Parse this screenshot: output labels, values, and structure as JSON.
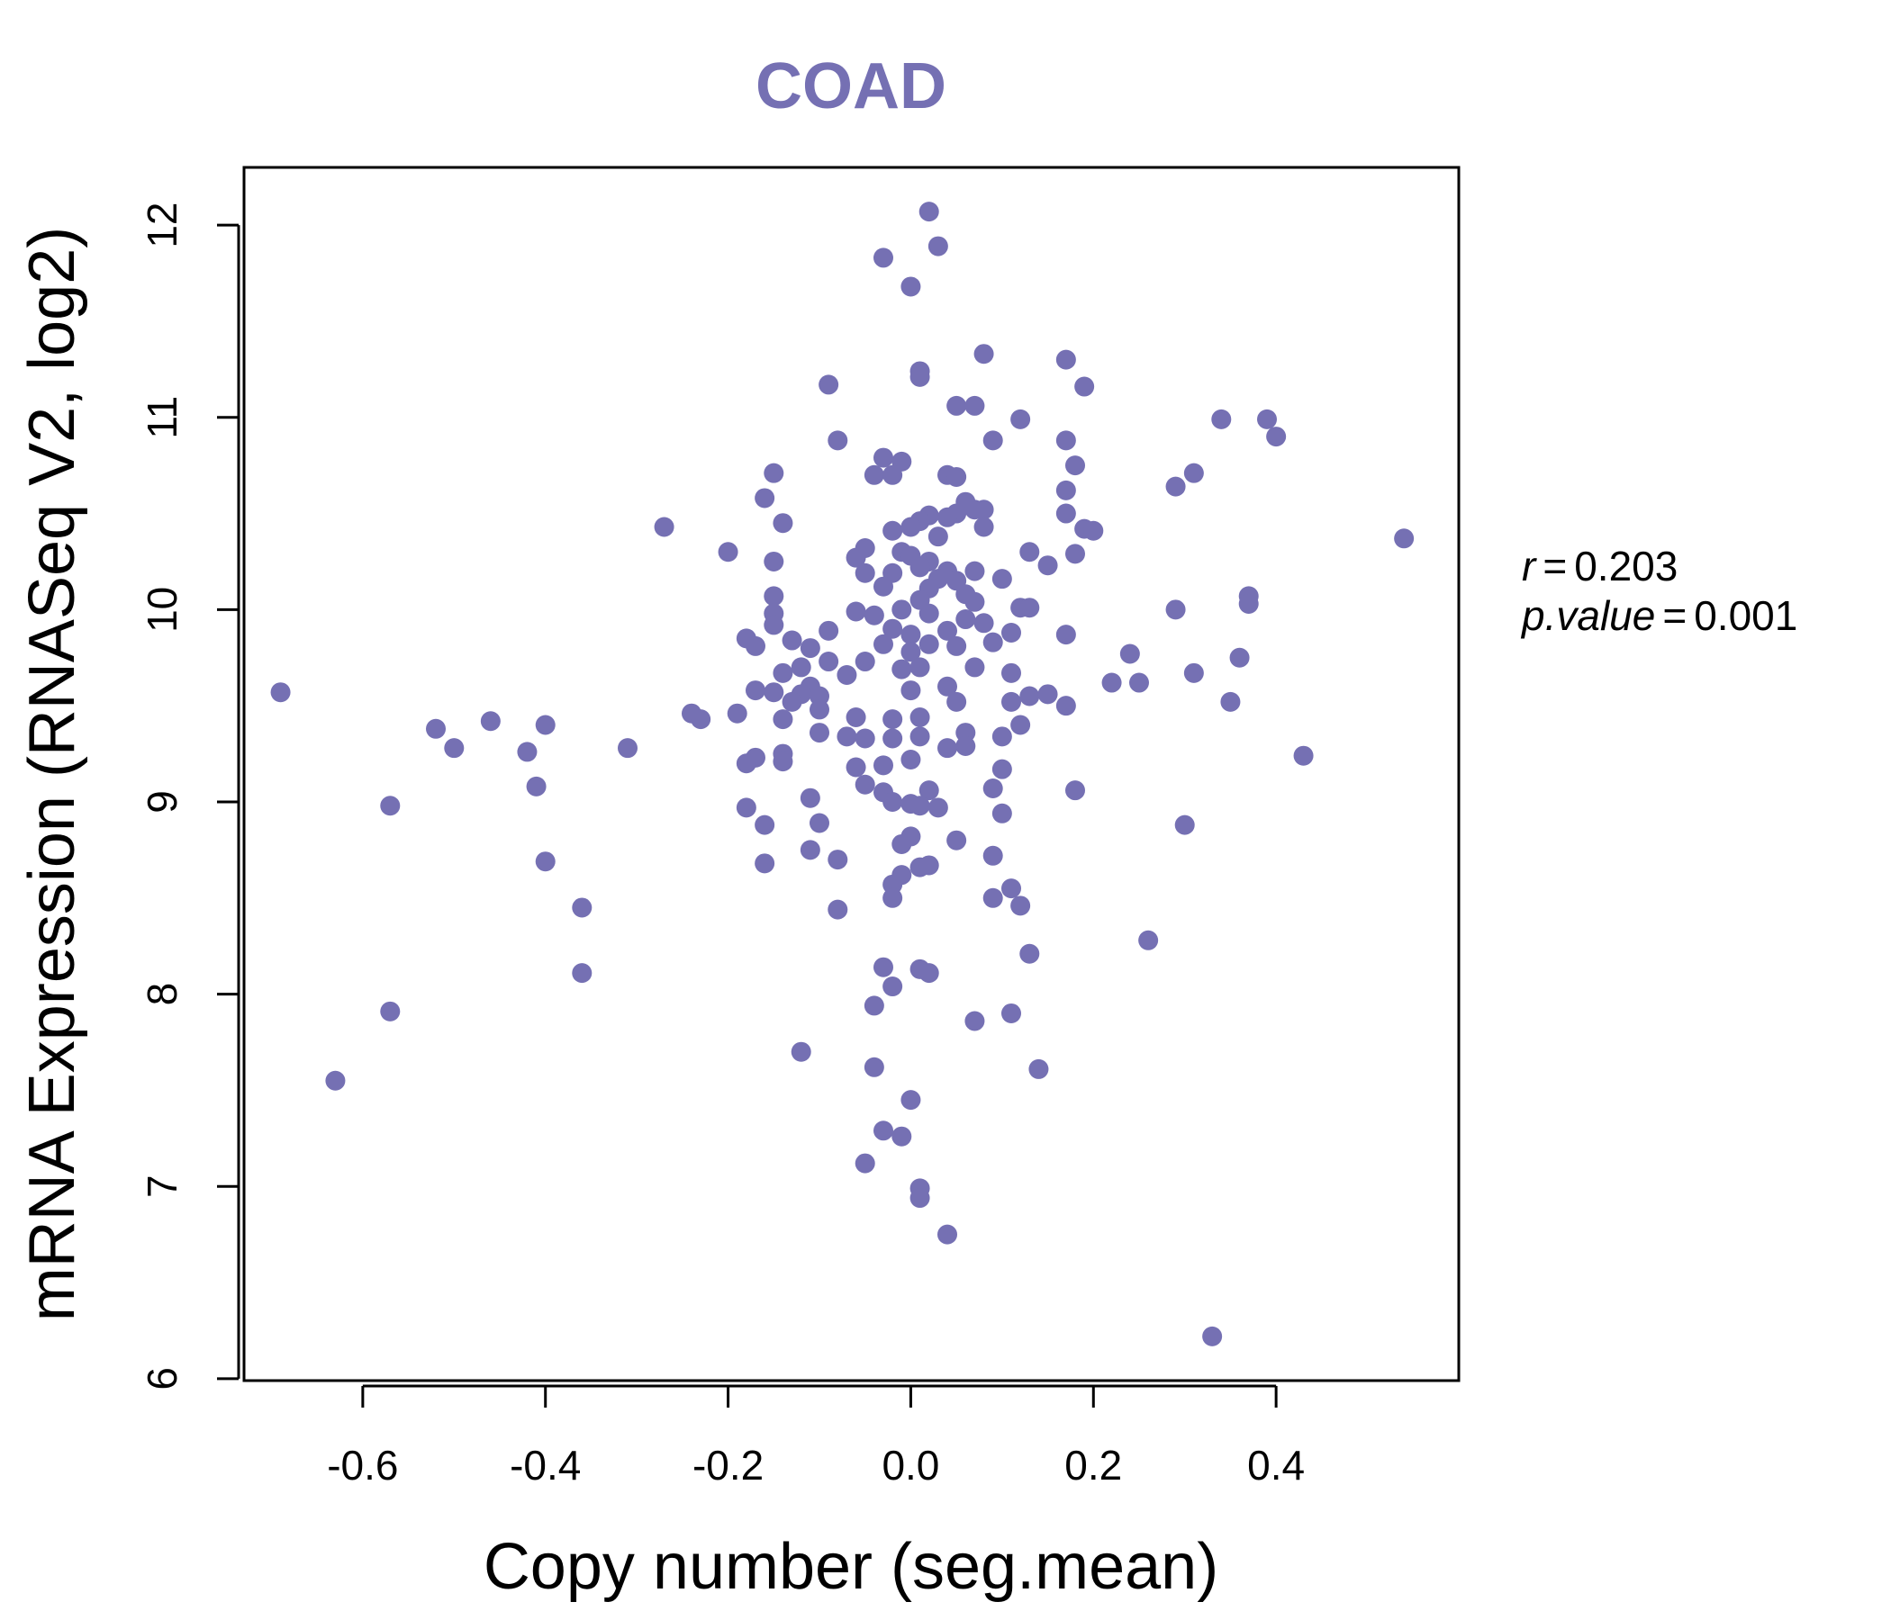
{
  "colors": {
    "point": "#7570B3",
    "title": "#7570B3",
    "axis": "#000000"
  },
  "chart_data": {
    "type": "scatter",
    "title": "COAD",
    "xlabel": "Copy number (seg.mean)",
    "ylabel": "mRNA Expression (RNASeq V2, log2)",
    "xlim": [
      -0.73,
      0.6
    ],
    "ylim": [
      5.99,
      12.3
    ],
    "xticks": [
      -0.6,
      -0.4,
      -0.2,
      0.0,
      0.2,
      0.4
    ],
    "xtick_labels": [
      "-0.6",
      "-0.4",
      "-0.2",
      "0.0",
      "0.2",
      "0.4"
    ],
    "yticks": [
      6,
      7,
      8,
      9,
      10,
      11,
      12
    ],
    "ytick_labels": [
      "6",
      "7",
      "8",
      "9",
      "10",
      "11",
      "12"
    ],
    "stats": {
      "r_label": "r",
      "r_value": "0.203",
      "p_label": "p.value",
      "p_value": "0.001"
    },
    "points": [
      [
        0.02,
        12.07
      ],
      [
        -0.03,
        11.83
      ],
      [
        0.03,
        11.89
      ],
      [
        0.0,
        11.68
      ],
      [
        0.08,
        11.33
      ],
      [
        0.17,
        11.3
      ],
      [
        0.19,
        11.16
      ],
      [
        0.01,
        11.24
      ],
      [
        0.01,
        11.21
      ],
      [
        -0.09,
        11.17
      ],
      [
        0.05,
        11.06
      ],
      [
        0.07,
        11.06
      ],
      [
        0.12,
        10.99
      ],
      [
        0.34,
        10.99
      ],
      [
        0.39,
        10.99
      ],
      [
        0.4,
        10.9
      ],
      [
        0.09,
        10.88
      ],
      [
        0.17,
        10.88
      ],
      [
        -0.08,
        10.88
      ],
      [
        -0.03,
        10.79
      ],
      [
        -0.01,
        10.77
      ],
      [
        0.18,
        10.75
      ],
      [
        0.31,
        10.71
      ],
      [
        0.04,
        10.7
      ],
      [
        0.05,
        10.69
      ],
      [
        -0.04,
        10.7
      ],
      [
        -0.02,
        10.7
      ],
      [
        -0.15,
        10.71
      ],
      [
        0.29,
        10.64
      ],
      [
        0.17,
        10.62
      ],
      [
        -0.16,
        10.58
      ],
      [
        0.06,
        10.56
      ],
      [
        0.07,
        10.52
      ],
      [
        0.08,
        10.52
      ],
      [
        0.17,
        10.5
      ],
      [
        0.05,
        10.5
      ],
      [
        0.04,
        10.48
      ],
      [
        0.02,
        10.49
      ],
      [
        0.01,
        10.46
      ],
      [
        -0.14,
        10.45
      ],
      [
        -0.27,
        10.43
      ],
      [
        0.08,
        10.43
      ],
      [
        -0.02,
        10.41
      ],
      [
        0.0,
        10.43
      ],
      [
        0.19,
        10.42
      ],
      [
        0.2,
        10.41
      ],
      [
        0.03,
        10.38
      ],
      [
        -0.05,
        10.32
      ],
      [
        0.54,
        10.37
      ],
      [
        -0.2,
        10.3
      ],
      [
        0.13,
        10.3
      ],
      [
        0.18,
        10.29
      ],
      [
        -0.01,
        10.3
      ],
      [
        0.02,
        10.25
      ],
      [
        -0.15,
        10.25
      ],
      [
        0.0,
        10.28
      ],
      [
        -0.06,
        10.27
      ],
      [
        0.01,
        10.22
      ],
      [
        0.15,
        10.23
      ],
      [
        -0.02,
        10.19
      ],
      [
        0.04,
        10.2
      ],
      [
        0.07,
        10.2
      ],
      [
        -0.05,
        10.19
      ],
      [
        0.03,
        10.16
      ],
      [
        0.05,
        10.15
      ],
      [
        0.1,
        10.16
      ],
      [
        -0.03,
        10.12
      ],
      [
        0.02,
        10.11
      ],
      [
        0.06,
        10.08
      ],
      [
        0.37,
        10.07
      ],
      [
        -0.15,
        10.07
      ],
      [
        0.01,
        10.05
      ],
      [
        0.07,
        10.04
      ],
      [
        -0.01,
        10.0
      ],
      [
        0.12,
        10.01
      ],
      [
        0.13,
        10.01
      ],
      [
        0.29,
        10.0
      ],
      [
        0.37,
        10.03
      ],
      [
        -0.15,
        9.98
      ],
      [
        0.02,
        9.98
      ],
      [
        -0.06,
        9.99
      ],
      [
        -0.04,
        9.97
      ],
      [
        0.06,
        9.95
      ],
      [
        0.08,
        9.93
      ],
      [
        -0.02,
        9.9
      ],
      [
        -0.09,
        9.89
      ],
      [
        0.0,
        9.87
      ],
      [
        0.04,
        9.89
      ],
      [
        0.11,
        9.88
      ],
      [
        0.17,
        9.87
      ],
      [
        -0.15,
        9.92
      ],
      [
        -0.18,
        9.85
      ],
      [
        -0.17,
        9.81
      ],
      [
        -0.13,
        9.84
      ],
      [
        -0.11,
        9.8
      ],
      [
        -0.03,
        9.82
      ],
      [
        0.02,
        9.82
      ],
      [
        0.05,
        9.81
      ],
      [
        0.09,
        9.83
      ],
      [
        0.0,
        9.78
      ],
      [
        0.24,
        9.77
      ],
      [
        0.36,
        9.75
      ],
      [
        -0.09,
        9.73
      ],
      [
        -0.05,
        9.73
      ],
      [
        0.01,
        9.7
      ],
      [
        -0.01,
        9.69
      ],
      [
        0.07,
        9.7
      ],
      [
        0.11,
        9.67
      ],
      [
        -0.14,
        9.67
      ],
      [
        -0.12,
        9.7
      ],
      [
        -0.07,
        9.66
      ],
      [
        0.31,
        9.67
      ],
      [
        0.22,
        9.62
      ],
      [
        0.25,
        9.62
      ],
      [
        -0.11,
        9.6
      ],
      [
        -0.17,
        9.58
      ],
      [
        -0.15,
        9.57
      ],
      [
        0.0,
        9.58
      ],
      [
        0.04,
        9.6
      ],
      [
        -0.69,
        9.57
      ],
      [
        -0.12,
        9.56
      ],
      [
        -0.1,
        9.55
      ],
      [
        0.13,
        9.55
      ],
      [
        0.15,
        9.56
      ],
      [
        0.35,
        9.52
      ],
      [
        0.17,
        9.5
      ],
      [
        0.05,
        9.52
      ],
      [
        0.11,
        9.52
      ],
      [
        -0.13,
        9.52
      ],
      [
        -0.1,
        9.48
      ],
      [
        -0.24,
        9.46
      ],
      [
        -0.19,
        9.46
      ],
      [
        -0.23,
        9.43
      ],
      [
        -0.14,
        9.43
      ],
      [
        -0.06,
        9.44
      ],
      [
        -0.02,
        9.43
      ],
      [
        0.01,
        9.44
      ],
      [
        0.12,
        9.4
      ],
      [
        -0.46,
        9.42
      ],
      [
        -0.4,
        9.4
      ],
      [
        -0.52,
        9.38
      ],
      [
        -0.1,
        9.36
      ],
      [
        -0.07,
        9.34
      ],
      [
        0.06,
        9.36
      ],
      [
        0.1,
        9.34
      ],
      [
        -0.05,
        9.33
      ],
      [
        -0.02,
        9.33
      ],
      [
        0.01,
        9.34
      ],
      [
        -0.31,
        9.28
      ],
      [
        -0.5,
        9.28
      ],
      [
        -0.42,
        9.26
      ],
      [
        0.04,
        9.28
      ],
      [
        0.06,
        9.29
      ],
      [
        -0.14,
        9.25
      ],
      [
        -0.14,
        9.21
      ],
      [
        -0.17,
        9.23
      ],
      [
        -0.18,
        9.2
      ],
      [
        0.0,
        9.22
      ],
      [
        -0.03,
        9.19
      ],
      [
        -0.06,
        9.18
      ],
      [
        0.1,
        9.17
      ],
      [
        0.43,
        9.24
      ],
      [
        -0.41,
        9.08
      ],
      [
        -0.05,
        9.09
      ],
      [
        0.02,
        9.06
      ],
      [
        0.09,
        9.07
      ],
      [
        0.18,
        9.06
      ],
      [
        -0.03,
        9.05
      ],
      [
        -0.11,
        9.02
      ],
      [
        -0.57,
        8.98
      ],
      [
        -0.18,
        8.97
      ],
      [
        -0.02,
        9.0
      ],
      [
        0.0,
        8.99
      ],
      [
        0.01,
        8.98
      ],
      [
        0.03,
        8.97
      ],
      [
        0.1,
        8.94
      ],
      [
        0.3,
        8.88
      ],
      [
        -0.16,
        8.88
      ],
      [
        -0.1,
        8.89
      ],
      [
        0.0,
        8.82
      ],
      [
        0.05,
        8.8
      ],
      [
        -0.01,
        8.78
      ],
      [
        -0.4,
        8.69
      ],
      [
        -0.16,
        8.68
      ],
      [
        -0.08,
        8.7
      ],
      [
        -0.11,
        8.75
      ],
      [
        0.01,
        8.66
      ],
      [
        0.02,
        8.67
      ],
      [
        0.09,
        8.72
      ],
      [
        -0.01,
        8.62
      ],
      [
        -0.02,
        8.57
      ],
      [
        -0.02,
        8.5
      ],
      [
        0.09,
        8.5
      ],
      [
        0.11,
        8.55
      ],
      [
        0.12,
        8.46
      ],
      [
        -0.36,
        8.45
      ],
      [
        -0.08,
        8.44
      ],
      [
        0.26,
        8.28
      ],
      [
        0.13,
        8.21
      ],
      [
        -0.36,
        8.11
      ],
      [
        -0.03,
        8.14
      ],
      [
        0.01,
        8.13
      ],
      [
        0.02,
        8.11
      ],
      [
        -0.02,
        8.04
      ],
      [
        -0.04,
        7.94
      ],
      [
        -0.57,
        7.91
      ],
      [
        0.11,
        7.9
      ],
      [
        0.07,
        7.86
      ],
      [
        -0.12,
        7.7
      ],
      [
        -0.04,
        7.62
      ],
      [
        0.14,
        7.61
      ],
      [
        -0.63,
        7.55
      ],
      [
        0.0,
        7.45
      ],
      [
        -0.03,
        7.29
      ],
      [
        -0.01,
        7.26
      ],
      [
        -0.05,
        7.12
      ],
      [
        0.01,
        6.99
      ],
      [
        0.01,
        6.94
      ],
      [
        0.04,
        6.75
      ],
      [
        0.33,
        6.22
      ]
    ]
  }
}
